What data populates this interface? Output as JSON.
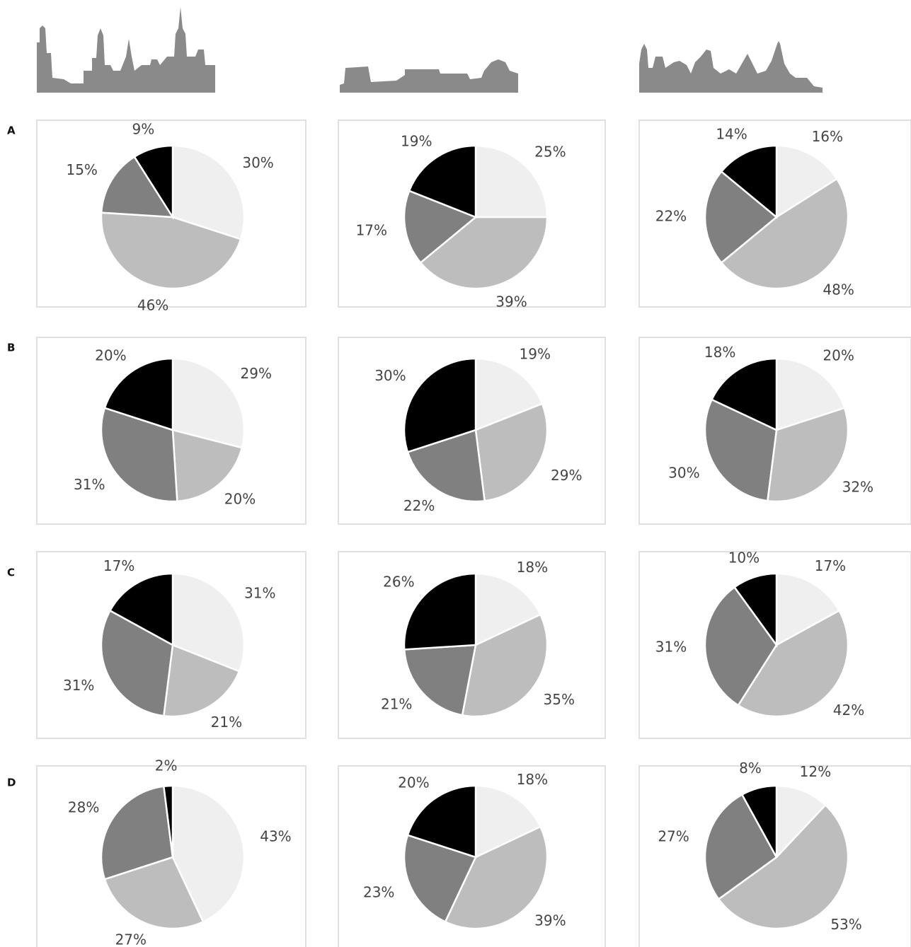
{
  "row_labels": [
    "A",
    "B",
    "C",
    "D"
  ],
  "chart_data": [
    {
      "type": "pie",
      "values": [
        30,
        46,
        15,
        9
      ],
      "value_labels": [
        "30%",
        "46%",
        "15%",
        "9%"
      ],
      "colors": [
        "#efefef",
        "#bdbdbd",
        "#808080",
        "#000000"
      ]
    },
    {
      "type": "pie",
      "values": [
        25,
        39,
        17,
        19
      ],
      "value_labels": [
        "25%",
        "39%",
        "17%",
        "19%"
      ],
      "colors": [
        "#efefef",
        "#bdbdbd",
        "#808080",
        "#000000"
      ]
    },
    {
      "type": "pie",
      "values": [
        16,
        48,
        22,
        14
      ],
      "value_labels": [
        "16%",
        "48%",
        "22%",
        "14%"
      ],
      "colors": [
        "#efefef",
        "#bdbdbd",
        "#808080",
        "#000000"
      ]
    },
    {
      "type": "pie",
      "values": [
        29,
        20,
        31,
        20
      ],
      "value_labels": [
        "29%",
        "20%",
        "31%",
        "20%"
      ],
      "colors": [
        "#efefef",
        "#bdbdbd",
        "#808080",
        "#000000"
      ]
    },
    {
      "type": "pie",
      "values": [
        19,
        29,
        22,
        30
      ],
      "value_labels": [
        "19%",
        "29%",
        "22%",
        "30%"
      ],
      "colors": [
        "#efefef",
        "#bdbdbd",
        "#808080",
        "#000000"
      ]
    },
    {
      "type": "pie",
      "values": [
        20,
        32,
        30,
        18
      ],
      "value_labels": [
        "20%",
        "32%",
        "30%",
        "18%"
      ],
      "colors": [
        "#efefef",
        "#bdbdbd",
        "#808080",
        "#000000"
      ]
    },
    {
      "type": "pie",
      "values": [
        31,
        21,
        31,
        17
      ],
      "value_labels": [
        "31%",
        "21%",
        "31%",
        "17%"
      ],
      "colors": [
        "#efefef",
        "#bdbdbd",
        "#808080",
        "#000000"
      ]
    },
    {
      "type": "pie",
      "values": [
        18,
        35,
        21,
        26
      ],
      "value_labels": [
        "18%",
        "35%",
        "21%",
        "26%"
      ],
      "colors": [
        "#efefef",
        "#bdbdbd",
        "#808080",
        "#000000"
      ]
    },
    {
      "type": "pie",
      "values": [
        17,
        42,
        31,
        10
      ],
      "value_labels": [
        "17%",
        "42%",
        "31%",
        "10%"
      ],
      "colors": [
        "#efefef",
        "#bdbdbd",
        "#808080",
        "#000000"
      ]
    },
    {
      "type": "pie",
      "values": [
        43,
        27,
        28,
        2
      ],
      "value_labels": [
        "43%",
        "27%",
        "28%",
        "2%"
      ],
      "colors": [
        "#efefef",
        "#bdbdbd",
        "#808080",
        "#000000"
      ]
    },
    {
      "type": "pie",
      "values": [
        18,
        39,
        23,
        20
      ],
      "value_labels": [
        "18%",
        "39%",
        "23%",
        "20%"
      ],
      "colors": [
        "#efefef",
        "#bdbdbd",
        "#808080",
        "#000000"
      ]
    },
    {
      "type": "pie",
      "values": [
        12,
        53,
        27,
        8
      ],
      "value_labels": [
        "12%",
        "53%",
        "27%",
        "8%"
      ],
      "colors": [
        "#efefef",
        "#bdbdbd",
        "#808080",
        "#000000"
      ]
    }
  ]
}
